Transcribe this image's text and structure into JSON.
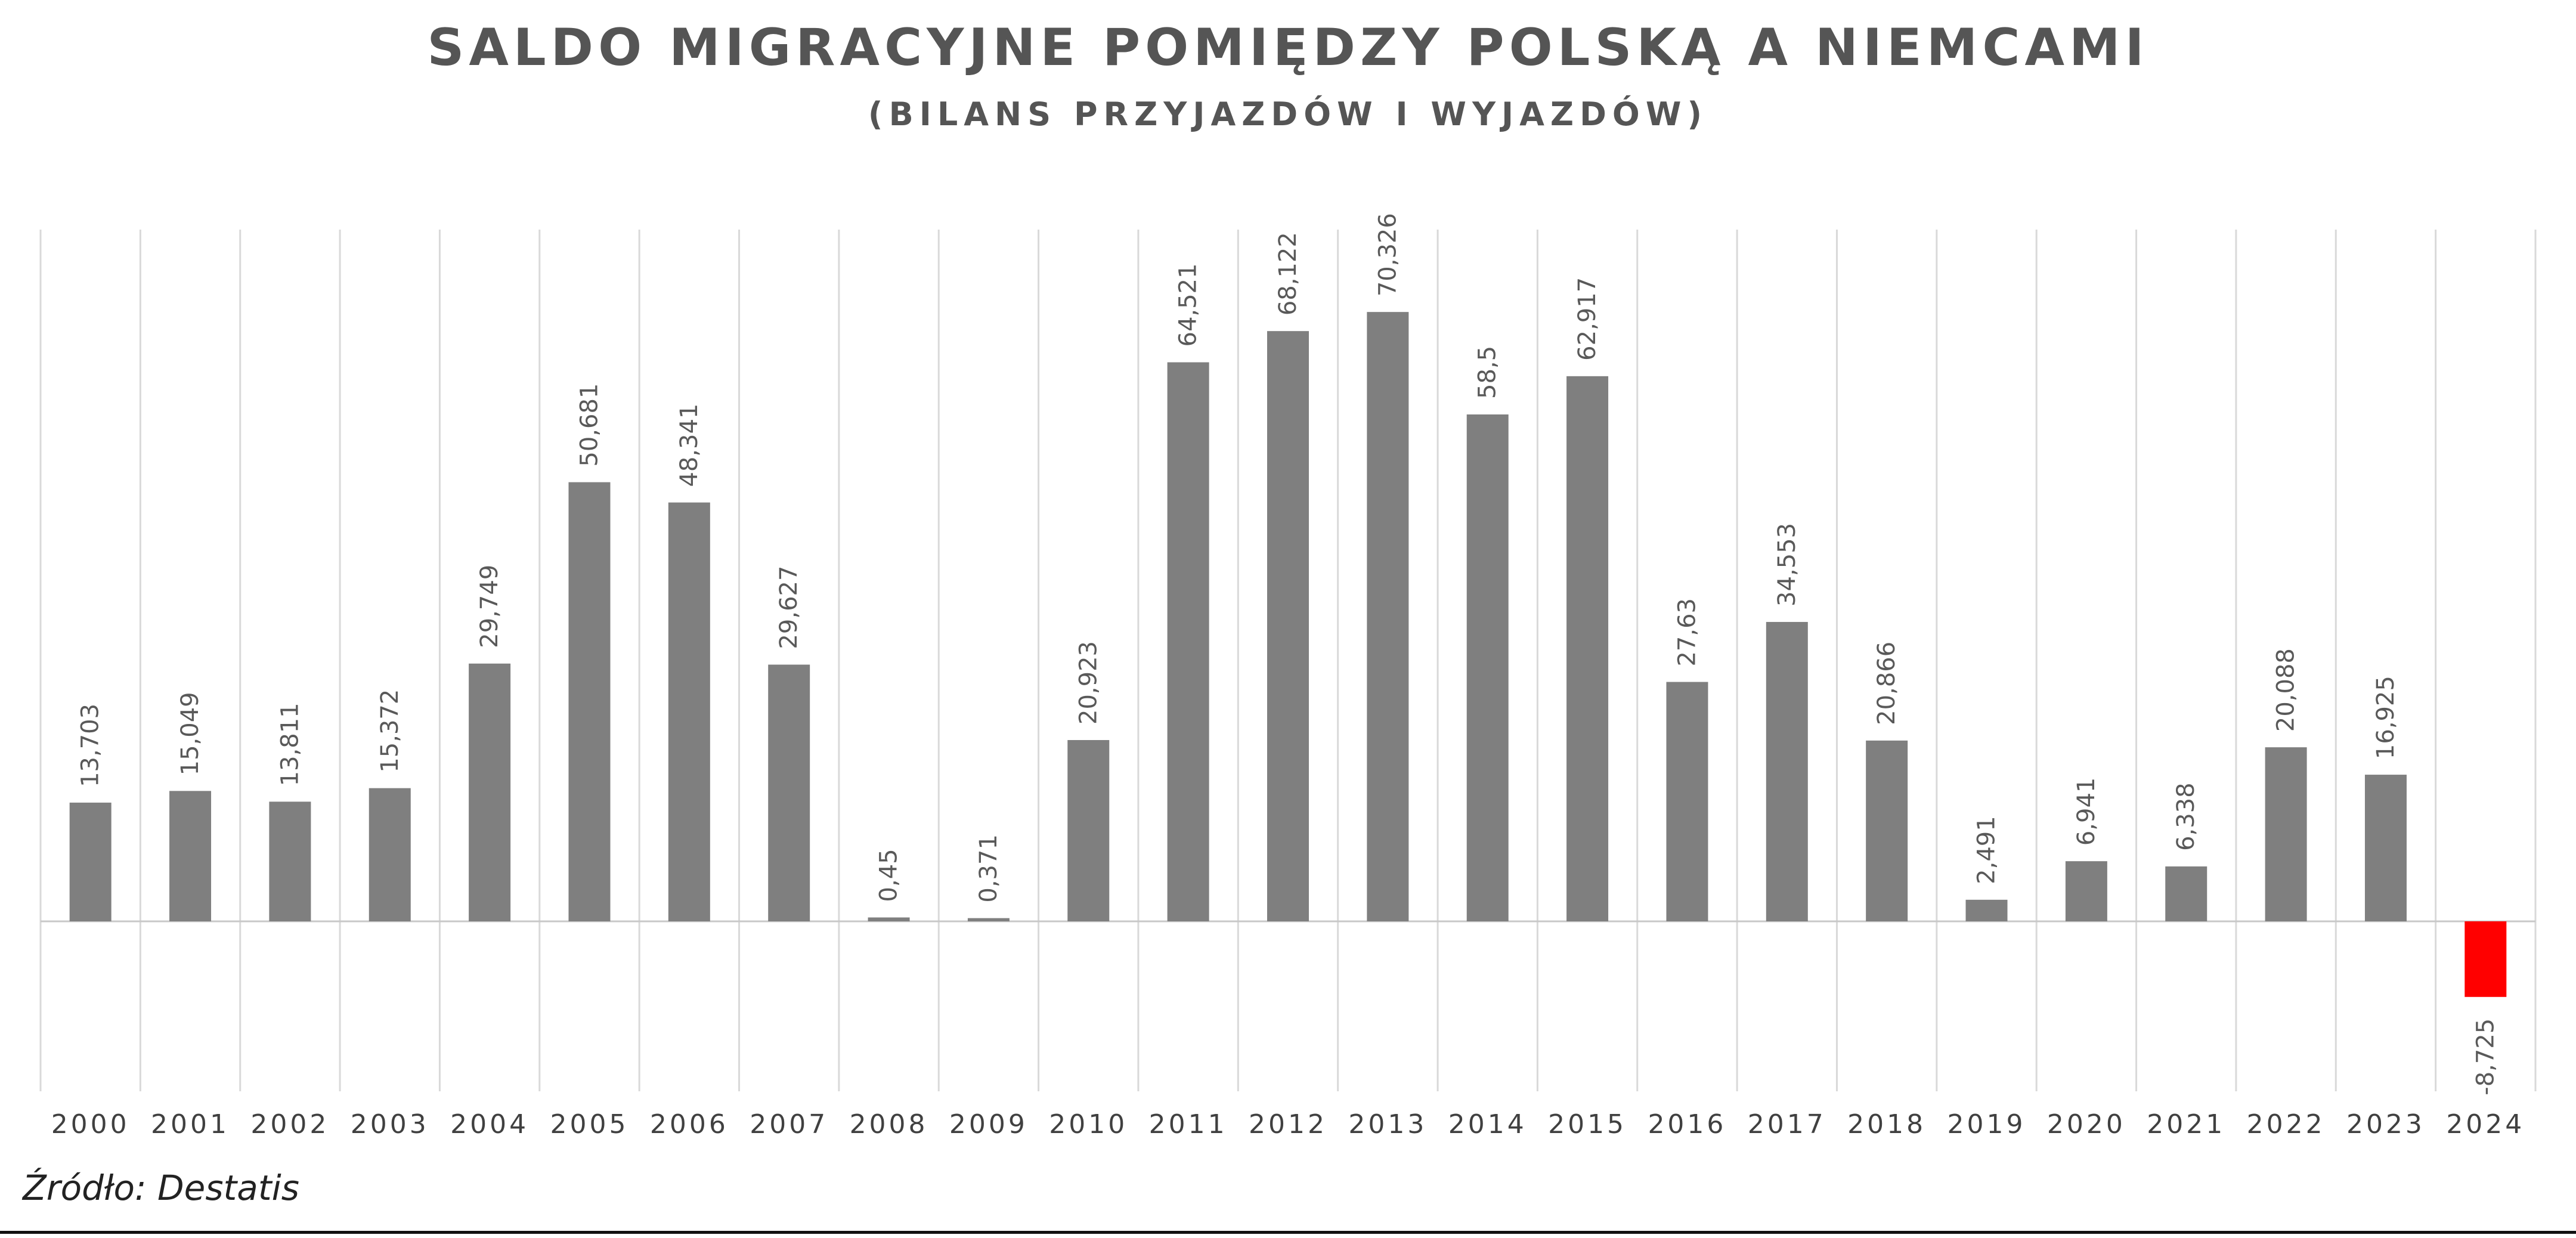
{
  "chart_data": {
    "type": "bar",
    "title": "SALDO MIGRACYJNE POMIĘDZY POLSKĄ A NIEMCAMI",
    "subtitle": "(BILANS PRZYJAZDÓW I WYJAZDÓW)",
    "categories": [
      "2000",
      "2001",
      "2002",
      "2003",
      "2004",
      "2005",
      "2006",
      "2007",
      "2008",
      "2009",
      "2010",
      "2011",
      "2012",
      "2013",
      "2014",
      "2015",
      "2016",
      "2017",
      "2018",
      "2019",
      "2020",
      "2021",
      "2022",
      "2023",
      "2024"
    ],
    "values": [
      13.703,
      15.049,
      13.811,
      15.372,
      29.749,
      50.681,
      48.341,
      29.627,
      0.45,
      0.371,
      20.923,
      64.521,
      68.122,
      70.326,
      58.5,
      62.917,
      27.63,
      34.553,
      20.866,
      2.491,
      6.941,
      6.338,
      20.088,
      16.925,
      -8.725
    ],
    "labels": [
      "13,703",
      "15,049",
      "13,811",
      "15,372",
      "29,749",
      "50,681",
      "48,341",
      "29,627",
      "0,45",
      "0,371",
      "20,923",
      "64,521",
      "68,122",
      "70,326",
      "58,5",
      "62,917",
      "27,63",
      "34,553",
      "20,866",
      "2,491",
      "6,941",
      "6,338",
      "20,088",
      "16,925",
      "-8,725"
    ],
    "xlabel": "",
    "ylabel": "",
    "grid": "vertical",
    "legend": "none"
  },
  "colors": {
    "bar": "#7f7f7f",
    "negative_bar": "#ff0000",
    "grid": "#d9d9d9",
    "text": "#595959"
  },
  "source": "Źródło: Destatis"
}
